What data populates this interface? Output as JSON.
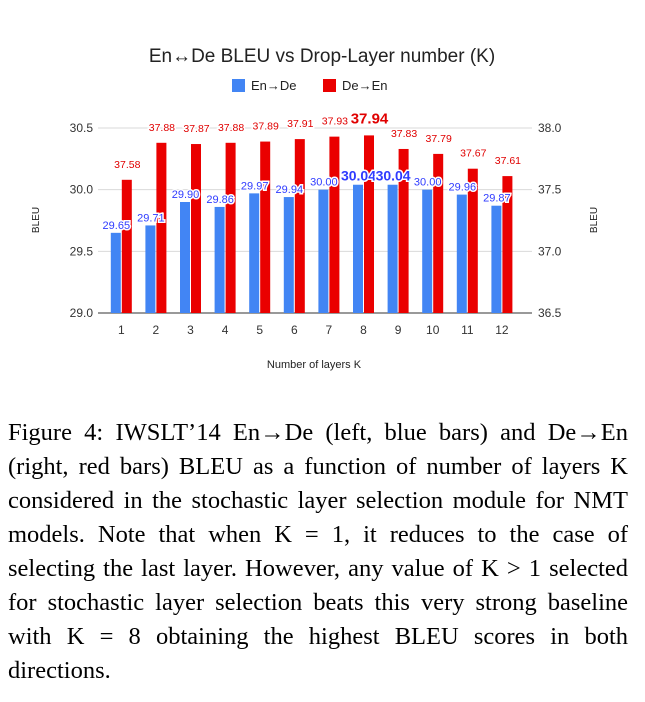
{
  "chart_data": {
    "type": "bar",
    "title": "En↔De BLEU vs Drop-Layer number (K)",
    "xlabel": "Number of layers K",
    "ylabel_left": "BLEU",
    "ylabel_right": "BLEU",
    "categories": [
      "1",
      "2",
      "3",
      "4",
      "5",
      "6",
      "7",
      "8",
      "9",
      "10",
      "11",
      "12"
    ],
    "series": [
      {
        "name": "En→De",
        "axis": "left",
        "color": "#4285f4",
        "values": [
          29.65,
          29.71,
          29.9,
          29.86,
          29.97,
          29.94,
          30.0,
          30.04,
          30.04,
          30.0,
          29.96,
          29.87
        ],
        "labels": [
          "29.65",
          "29.71",
          "29.90",
          "29.86",
          "29.97",
          "29.94",
          "30.00",
          "30.04",
          "30.04",
          "30.00",
          "29.96",
          "29.87"
        ]
      },
      {
        "name": "De→En",
        "axis": "right",
        "color": "#ea0000",
        "values": [
          37.58,
          37.88,
          37.87,
          37.88,
          37.89,
          37.91,
          37.93,
          37.94,
          37.83,
          37.79,
          37.67,
          37.61
        ],
        "labels": [
          "37.58",
          "37.88",
          "37.87",
          "37.88",
          "37.89",
          "37.91",
          "37.93",
          "37.94",
          "37.83",
          "37.79",
          "37.67",
          "37.61"
        ]
      }
    ],
    "ylim_left": [
      29.0,
      30.5
    ],
    "yticks_left": [
      "29.0",
      "29.5",
      "30.0",
      "30.5"
    ],
    "ylim_right": [
      36.5,
      38.0
    ],
    "yticks_right": [
      "36.5",
      "37.0",
      "37.5",
      "38.0"
    ],
    "grid": true,
    "legend": "top-center"
  },
  "caption": "Figure 4: IWSLT’14 En→De (left, blue bars) and De→En (right, red bars) BLEU as a function of number of layers K considered in the stochastic layer selection module for NMT models. Note that when K = 1, it reduces to the case of selecting the last layer. However, any value of K > 1 selected for stochastic layer selection beats this very strong baseline with K = 8 obtaining the highest BLEU scores in both directions."
}
